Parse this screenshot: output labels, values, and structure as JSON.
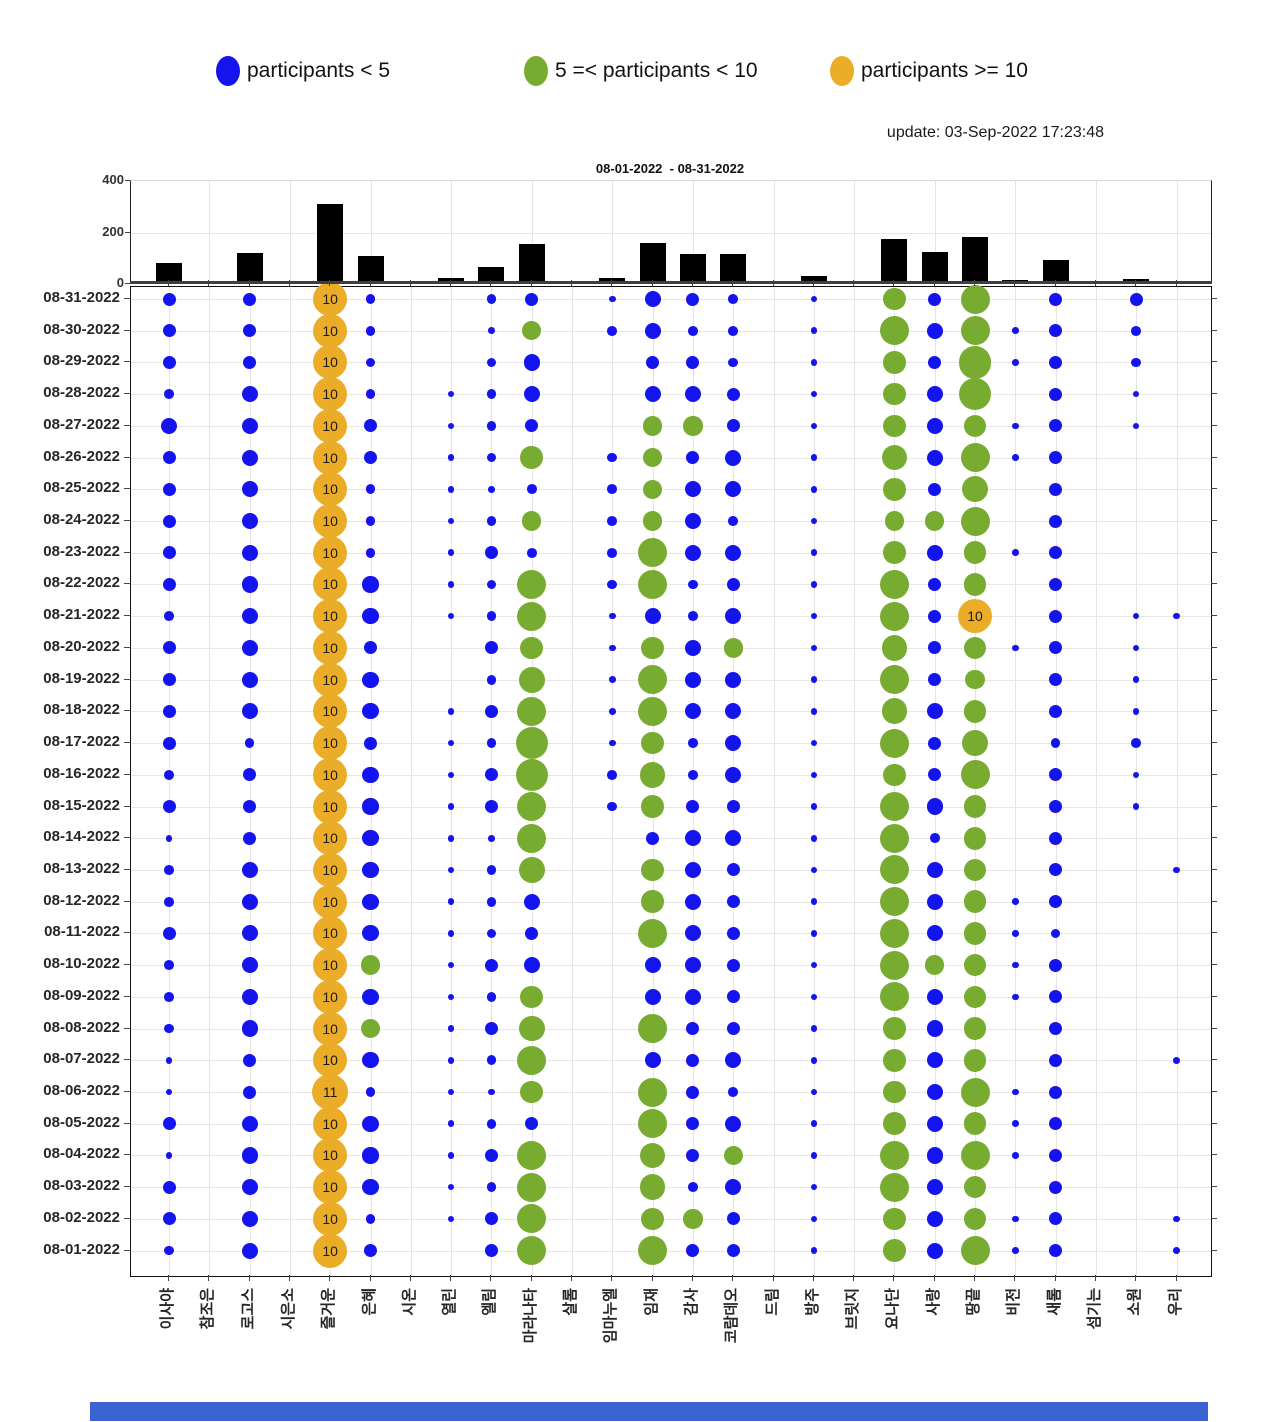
{
  "legend": {
    "items": [
      {
        "label": "participants < 5",
        "color": "#1414EE"
      },
      {
        "label": "5 =< participants < 10",
        "color": "#77AC30"
      },
      {
        "label": "participants >= 10",
        "color": "#EBAD27"
      }
    ]
  },
  "update_text": "update: 03-Sep-2022 17:23:48",
  "chart_data": [
    {
      "type": "bar",
      "title": "08-01-2022  - 08-31-2022",
      "xlabel": "",
      "ylabel": "",
      "ylim": [
        0,
        400
      ],
      "yticks": [
        0,
        200,
        400
      ],
      "grid": true,
      "bar_color": "#000000",
      "categories": [
        "이사야",
        "참조은",
        "로고스",
        "시은소",
        "즐거운",
        "은혜",
        "시온",
        "열린",
        "엘림",
        "마라나타",
        "살롬",
        "임마누엘",
        "임재",
        "감사",
        "코람데오",
        "드림",
        "방주",
        "브릿지",
        "요나단",
        "사랑",
        "땅끝",
        "비전",
        "새롬",
        "섬기는",
        "소원",
        "우리"
      ],
      "values": [
        80,
        0,
        120,
        0,
        311,
        108,
        0,
        25,
        65,
        155,
        0,
        22,
        158,
        115,
        115,
        0,
        30,
        0,
        175,
        125,
        182,
        15,
        95,
        0,
        18,
        8
      ]
    },
    {
      "type": "scatter",
      "subtype": "bubble-grid",
      "note": "daily participants per group; bubble size = count",
      "colors": {
        "blue": "#1414EE",
        "green": "#77AC30",
        "orange": "#EBAD27"
      },
      "thresholds": {
        "blue_below": 5,
        "green_below": 10,
        "labeled_from": 10
      },
      "dates": [
        "08-31-2022",
        "08-30-2022",
        "08-29-2022",
        "08-28-2022",
        "08-27-2022",
        "08-26-2022",
        "08-25-2022",
        "08-24-2022",
        "08-23-2022",
        "08-22-2022",
        "08-21-2022",
        "08-20-2022",
        "08-19-2022",
        "08-18-2022",
        "08-17-2022",
        "08-16-2022",
        "08-15-2022",
        "08-14-2022",
        "08-13-2022",
        "08-12-2022",
        "08-11-2022",
        "08-10-2022",
        "08-09-2022",
        "08-08-2022",
        "08-07-2022",
        "08-06-2022",
        "08-05-2022",
        "08-04-2022",
        "08-03-2022",
        "08-02-2022",
        "08-01-2022"
      ],
      "groups": [
        {
          "name": "이사야",
          "values": [
            3,
            3,
            3,
            2,
            4,
            3,
            3,
            3,
            3,
            3,
            2,
            3,
            3,
            3,
            3,
            2,
            3,
            1,
            2,
            2,
            3,
            2,
            2,
            2,
            1,
            1,
            3,
            1,
            3,
            3,
            2
          ]
        },
        {
          "name": "참조은",
          "values": [
            0,
            0,
            0,
            0,
            0,
            0,
            0,
            0,
            0,
            0,
            0,
            0,
            0,
            0,
            0,
            0,
            0,
            0,
            0,
            0,
            0,
            0,
            0,
            0,
            0,
            0,
            0,
            0,
            0,
            0,
            0
          ]
        },
        {
          "name": "로고스",
          "values": [
            3,
            3,
            3,
            4,
            4,
            4,
            4,
            4,
            4,
            4,
            4,
            4,
            4,
            4,
            2,
            3,
            3,
            3,
            4,
            4,
            4,
            4,
            4,
            4,
            3,
            3,
            4,
            4,
            4,
            4,
            4
          ]
        },
        {
          "name": "시은소",
          "values": [
            0,
            0,
            0,
            0,
            0,
            0,
            0,
            0,
            0,
            0,
            0,
            0,
            0,
            0,
            0,
            0,
            0,
            0,
            0,
            0,
            0,
            0,
            0,
            0,
            0,
            0,
            0,
            0,
            0,
            0,
            0
          ]
        },
        {
          "name": "즐거운",
          "values": [
            10,
            10,
            10,
            10,
            10,
            10,
            10,
            10,
            10,
            10,
            10,
            10,
            10,
            10,
            10,
            10,
            10,
            10,
            10,
            10,
            10,
            10,
            10,
            10,
            10,
            11,
            10,
            10,
            10,
            10,
            10
          ]
        },
        {
          "name": "은혜",
          "values": [
            2,
            2,
            2,
            2,
            3,
            3,
            2,
            2,
            2,
            4,
            4,
            3,
            4,
            4,
            3,
            4,
            4,
            4,
            4,
            4,
            4,
            5,
            4,
            5,
            4,
            2,
            4,
            4,
            4,
            2,
            3
          ]
        },
        {
          "name": "시온",
          "values": [
            0,
            0,
            0,
            0,
            0,
            0,
            0,
            0,
            0,
            0,
            0,
            0,
            0,
            0,
            0,
            0,
            0,
            0,
            0,
            0,
            0,
            0,
            0,
            0,
            0,
            0,
            0,
            0,
            0,
            0,
            0
          ]
        },
        {
          "name": "열린",
          "values": [
            0,
            0,
            0,
            1,
            1,
            1,
            1,
            1,
            1,
            1,
            1,
            0,
            0,
            1,
            1,
            1,
            1,
            1,
            1,
            1,
            1,
            1,
            1,
            1,
            1,
            1,
            1,
            1,
            1,
            1,
            0
          ]
        },
        {
          "name": "엘림",
          "values": [
            2,
            1,
            2,
            2,
            2,
            2,
            1,
            2,
            3,
            2,
            2,
            3,
            2,
            3,
            2,
            3,
            3,
            1,
            2,
            2,
            2,
            3,
            2,
            3,
            2,
            1,
            2,
            3,
            2,
            3,
            3
          ]
        },
        {
          "name": "마라나타",
          "values": [
            3,
            5,
            4,
            4,
            3,
            6,
            2,
            5,
            2,
            8,
            8,
            6,
            7,
            8,
            9,
            9,
            8,
            8,
            7,
            4,
            3,
            4,
            6,
            7,
            8,
            6,
            3,
            8,
            8,
            8,
            8
          ]
        },
        {
          "name": "살롬",
          "values": [
            0,
            0,
            0,
            0,
            0,
            0,
            0,
            0,
            0,
            0,
            0,
            0,
            0,
            0,
            0,
            0,
            0,
            0,
            0,
            0,
            0,
            0,
            0,
            0,
            0,
            0,
            0,
            0,
            0,
            0,
            0
          ]
        },
        {
          "name": "임마누엘",
          "values": [
            1,
            2,
            0,
            0,
            0,
            2,
            2,
            2,
            2,
            2,
            1,
            1,
            1,
            1,
            1,
            2,
            2,
            0,
            0,
            0,
            0,
            0,
            0,
            0,
            0,
            0,
            0,
            0,
            0,
            0,
            0
          ]
        },
        {
          "name": "임재",
          "values": [
            4,
            4,
            3,
            4,
            5,
            5,
            5,
            5,
            8,
            8,
            4,
            6,
            8,
            8,
            6,
            7,
            6,
            3,
            6,
            6,
            8,
            4,
            4,
            8,
            4,
            8,
            8,
            7,
            7,
            6,
            8
          ]
        },
        {
          "name": "감사",
          "values": [
            3,
            2,
            3,
            4,
            5,
            3,
            4,
            4,
            4,
            2,
            2,
            4,
            4,
            4,
            2,
            2,
            3,
            4,
            4,
            4,
            4,
            4,
            4,
            3,
            3,
            3,
            3,
            3,
            2,
            5,
            3
          ]
        },
        {
          "name": "코람데오",
          "values": [
            2,
            2,
            2,
            3,
            3,
            4,
            4,
            2,
            4,
            3,
            4,
            5,
            4,
            4,
            4,
            4,
            3,
            4,
            3,
            3,
            3,
            3,
            3,
            3,
            4,
            2,
            4,
            5,
            4,
            3,
            3
          ]
        },
        {
          "name": "드림",
          "values": [
            0,
            0,
            0,
            0,
            0,
            0,
            0,
            0,
            0,
            0,
            0,
            0,
            0,
            0,
            0,
            0,
            0,
            0,
            0,
            0,
            0,
            0,
            0,
            0,
            0,
            0,
            0,
            0,
            0,
            0,
            0
          ]
        },
        {
          "name": "방주",
          "values": [
            1,
            1,
            1,
            1,
            1,
            1,
            1,
            1,
            1,
            1,
            1,
            1,
            1,
            1,
            1,
            1,
            1,
            1,
            1,
            1,
            1,
            1,
            1,
            1,
            1,
            1,
            1,
            1,
            1,
            1,
            1
          ]
        },
        {
          "name": "브릿지",
          "values": [
            0,
            0,
            0,
            0,
            0,
            0,
            0,
            0,
            0,
            0,
            0,
            0,
            0,
            0,
            0,
            0,
            0,
            0,
            0,
            0,
            0,
            0,
            0,
            0,
            0,
            0,
            0,
            0,
            0,
            0,
            0
          ]
        },
        {
          "name": "요나단",
          "values": [
            6,
            8,
            6,
            6,
            6,
            7,
            6,
            5,
            6,
            8,
            8,
            7,
            8,
            7,
            8,
            6,
            8,
            8,
            8,
            8,
            8,
            8,
            8,
            6,
            6,
            6,
            6,
            8,
            8,
            6,
            6
          ]
        },
        {
          "name": "사랑",
          "values": [
            3,
            4,
            3,
            4,
            4,
            4,
            3,
            5,
            4,
            3,
            3,
            3,
            3,
            4,
            3,
            3,
            4,
            2,
            4,
            4,
            4,
            5,
            4,
            4,
            4,
            4,
            4,
            4,
            4,
            4,
            4
          ]
        },
        {
          "name": "땅끝",
          "values": [
            8,
            8,
            9,
            9,
            6,
            8,
            7,
            8,
            6,
            6,
            10,
            6,
            5,
            6,
            7,
            8,
            6,
            6,
            6,
            6,
            6,
            6,
            6,
            6,
            6,
            8,
            6,
            8,
            6,
            6,
            8
          ]
        },
        {
          "name": "비전",
          "values": [
            0,
            1,
            1,
            0,
            1,
            1,
            0,
            0,
            1,
            0,
            0,
            1,
            0,
            0,
            0,
            0,
            0,
            0,
            0,
            1,
            1,
            1,
            1,
            0,
            0,
            1,
            1,
            1,
            0,
            1,
            1
          ]
        },
        {
          "name": "새롬",
          "values": [
            3,
            3,
            3,
            3,
            3,
            3,
            3,
            3,
            3,
            3,
            3,
            3,
            3,
            3,
            2,
            3,
            3,
            3,
            3,
            3,
            2,
            3,
            3,
            3,
            3,
            3,
            3,
            3,
            3,
            3,
            3
          ]
        },
        {
          "name": "섬기는",
          "values": [
            0,
            0,
            0,
            0,
            0,
            0,
            0,
            0,
            0,
            0,
            0,
            0,
            0,
            0,
            0,
            0,
            0,
            0,
            0,
            0,
            0,
            0,
            0,
            0,
            0,
            0,
            0,
            0,
            0,
            0,
            0
          ]
        },
        {
          "name": "소원",
          "values": [
            3,
            2,
            2,
            1,
            1,
            0,
            0,
            0,
            0,
            0,
            1,
            1,
            1,
            1,
            2,
            1,
            1,
            0,
            0,
            0,
            0,
            0,
            0,
            0,
            0,
            0,
            0,
            0,
            0,
            0,
            0
          ]
        },
        {
          "name": "우리",
          "values": [
            0,
            0,
            0,
            0,
            0,
            0,
            0,
            0,
            0,
            0,
            1,
            0,
            0,
            0,
            0,
            0,
            0,
            0,
            1,
            0,
            0,
            0,
            0,
            0,
            1,
            0,
            0,
            0,
            0,
            1,
            1
          ]
        }
      ]
    }
  ]
}
